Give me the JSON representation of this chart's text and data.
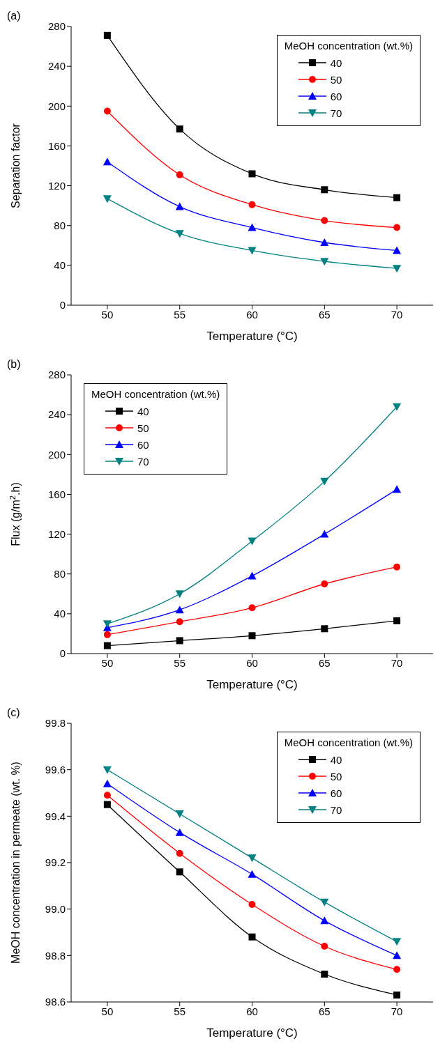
{
  "chart_data": [
    {
      "type": "line",
      "title": "(a)",
      "xlabel": "Temperature (°C)",
      "ylabel": "Separation factor",
      "legend_title": "MeOH concentration (wt.%)",
      "legend": "top right",
      "x": [
        50,
        55,
        60,
        65,
        70
      ],
      "xlim": [
        47.5,
        72.5
      ],
      "xticks": [
        50,
        55,
        60,
        65,
        70
      ],
      "ylim": [
        0,
        280
      ],
      "yticks": [
        0,
        40,
        80,
        120,
        160,
        200,
        240,
        280
      ],
      "grid": false,
      "line_style": "solid",
      "series": [
        {
          "name": "40",
          "color": "#000000",
          "marker": "square",
          "values": [
            271,
            177,
            132,
            116,
            108
          ]
        },
        {
          "name": "50",
          "color": "#ff0000",
          "marker": "circle",
          "values": [
            195,
            131,
            101,
            85,
            78
          ]
        },
        {
          "name": "60",
          "color": "#0000ff",
          "marker": "triangle",
          "values": [
            144,
            99,
            78,
            63,
            55
          ]
        },
        {
          "name": "70",
          "color": "#008080",
          "marker": "triangle-down",
          "values": [
            107,
            72,
            55,
            44,
            37
          ]
        }
      ]
    },
    {
      "type": "line",
      "title": "(b)",
      "xlabel": "Temperature (°C)",
      "ylabel": "Flux (g/m$^{2}$.h)",
      "legend_title": "MeOH concentration (wt.%)",
      "legend": "top left",
      "x": [
        50,
        55,
        60,
        65,
        70
      ],
      "xlim": [
        47.5,
        72.5
      ],
      "xticks": [
        50,
        55,
        60,
        65,
        70
      ],
      "ylim": [
        0,
        280
      ],
      "yticks": [
        0,
        40,
        80,
        120,
        160,
        200,
        240,
        280
      ],
      "grid": false,
      "line_style": "solid",
      "series": [
        {
          "name": "40",
          "color": "#000000",
          "marker": "square",
          "values": [
            8,
            13,
            18,
            25,
            33
          ]
        },
        {
          "name": "50",
          "color": "#ff0000",
          "marker": "circle",
          "values": [
            19,
            32,
            46,
            70,
            87
          ]
        },
        {
          "name": "60",
          "color": "#0000ff",
          "marker": "triangle",
          "values": [
            26,
            44,
            78,
            120,
            165
          ]
        },
        {
          "name": "70",
          "color": "#008080",
          "marker": "triangle-down",
          "values": [
            30,
            60,
            113,
            173,
            248
          ]
        }
      ]
    },
    {
      "type": "line",
      "title": "(c)",
      "xlabel": "Temperature (°C)",
      "ylabel": "MeOH concentration in permeate (wt. %)",
      "legend_title": "MeOH concentration (wt.%)",
      "legend": "top right",
      "x": [
        50,
        55,
        60,
        65,
        70
      ],
      "xlim": [
        47.5,
        72.5
      ],
      "xticks": [
        50,
        55,
        60,
        65,
        70
      ],
      "ylim": [
        98.6,
        99.8
      ],
      "yticks": [
        98.6,
        98.8,
        {
          "value": 99,
          "label": "99.0"
        },
        99.2,
        99.4,
        99.6,
        99.8
      ],
      "grid": false,
      "line_style": "solid",
      "series": [
        {
          "name": "40",
          "color": "#000000",
          "marker": "square",
          "values": [
            99.45,
            99.16,
            98.88,
            98.72,
            98.63
          ]
        },
        {
          "name": "50",
          "color": "#ff0000",
          "marker": "circle",
          "values": [
            99.49,
            99.24,
            99.02,
            98.84,
            98.74
          ]
        },
        {
          "name": "60",
          "color": "#0000ff",
          "marker": "triangle",
          "values": [
            99.54,
            99.33,
            99.15,
            98.95,
            98.8
          ]
        },
        {
          "name": "70",
          "color": "#008080",
          "marker": "triangle-down",
          "values": [
            99.6,
            99.41,
            99.22,
            99.03,
            98.86
          ]
        }
      ]
    }
  ]
}
